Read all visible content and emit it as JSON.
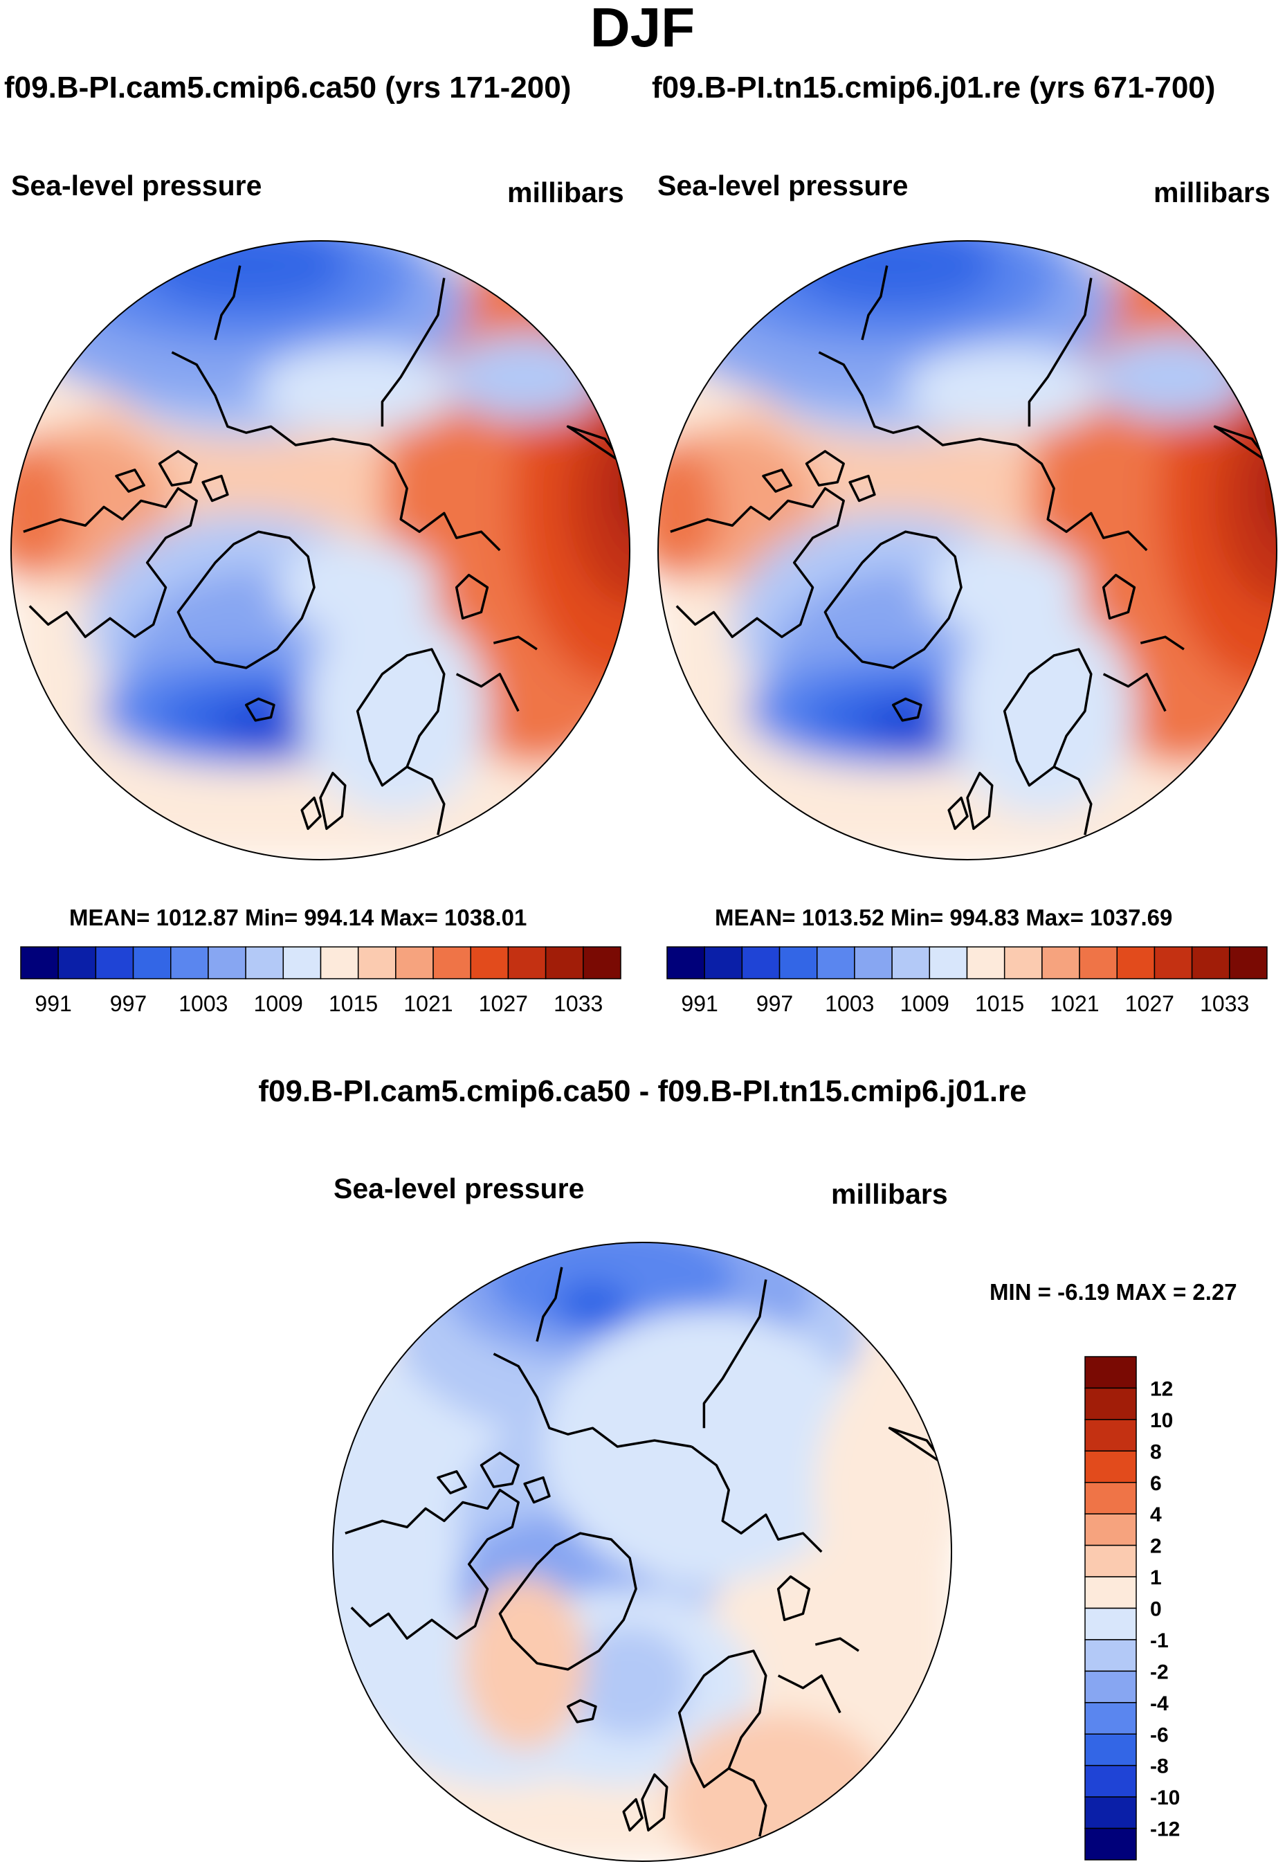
{
  "figure": {
    "title": "DJF",
    "diff_title": "f09.B-PI.cam5.cmip6.ca50 - f09.B-PI.tn15.cmip6.j01.re"
  },
  "panels": [
    {
      "case_title": "f09.B-PI.cam5.cmip6.ca50 (yrs 171-200)",
      "variable": "Sea-level pressure",
      "units": "millibars",
      "stats": "MEAN= 1012.87  Min= 994.14  Max= 1038.01"
    },
    {
      "case_title": "f09.B-PI.tn15.cmip6.j01.re (yrs 671-700)",
      "variable": "Sea-level pressure",
      "units": "millibars",
      "stats": "MEAN= 1013.52  Min= 994.83  Max= 1037.69"
    },
    {
      "variable": "Sea-level pressure",
      "units": "millibars",
      "stats": "MIN =  -6.19 MAX =   2.27"
    }
  ],
  "colorbar_abs": {
    "colors": [
      "#00007a",
      "#0a1fa8",
      "#1f44d6",
      "#3366e6",
      "#5a86ef",
      "#87a6f2",
      "#b3c9f7",
      "#d8e6fb",
      "#fdeadb",
      "#fbcbb0",
      "#f6a37e",
      "#ef7447",
      "#e24b1c",
      "#c43112",
      "#a11d08",
      "#7a0a03"
    ],
    "labels": [
      "991",
      "997",
      "1003",
      "1009",
      "1015",
      "1021",
      "1027",
      "1033"
    ]
  },
  "colorbar_diff": {
    "colors": [
      "#00007a",
      "#0a1fa8",
      "#1f44d6",
      "#3366e6",
      "#5a86ef",
      "#87a6f2",
      "#b3c9f7",
      "#d8e6fb",
      "#fdeadb",
      "#fbcbb0",
      "#f6a37e",
      "#ef7447",
      "#e24b1c",
      "#c43112",
      "#a11d08",
      "#7a0a03"
    ],
    "labels": [
      "12",
      "10",
      "8",
      "6",
      "4",
      "2",
      "1",
      "0",
      "-1",
      "-2",
      "-4",
      "-6",
      "-8",
      "-10",
      "-12"
    ]
  },
  "chart_data": [
    {
      "type": "heatmap",
      "projection": "north polar stereographic",
      "title": "f09.B-PI.cam5.cmip6.ca50 (yrs 171-200)",
      "variable": "Sea-level pressure",
      "units": "millibars",
      "mean": 1012.87,
      "min": 994.14,
      "max": 1038.01,
      "contour_levels": [
        988,
        991,
        994,
        997,
        1000,
        1003,
        1006,
        1009,
        1012,
        1015,
        1018,
        1021,
        1024,
        1027,
        1030,
        1033,
        1036
      ]
    },
    {
      "type": "heatmap",
      "projection": "north polar stereographic",
      "title": "f09.B-PI.tn15.cmip6.j01.re (yrs 671-700)",
      "variable": "Sea-level pressure",
      "units": "millibars",
      "mean": 1013.52,
      "min": 994.83,
      "max": 1037.69,
      "contour_levels": [
        988,
        991,
        994,
        997,
        1000,
        1003,
        1006,
        1009,
        1012,
        1015,
        1018,
        1021,
        1024,
        1027,
        1030,
        1033,
        1036
      ]
    },
    {
      "type": "heatmap",
      "projection": "north polar stereographic",
      "title": "f09.B-PI.cam5.cmip6.ca50 - f09.B-PI.tn15.cmip6.j01.re",
      "variable": "Sea-level pressure",
      "units": "millibars",
      "min": -6.19,
      "max": 2.27,
      "contour_levels": [
        -12,
        -10,
        -8,
        -6,
        -4,
        -2,
        -1,
        0,
        1,
        2,
        4,
        6,
        8,
        10,
        12
      ]
    }
  ]
}
